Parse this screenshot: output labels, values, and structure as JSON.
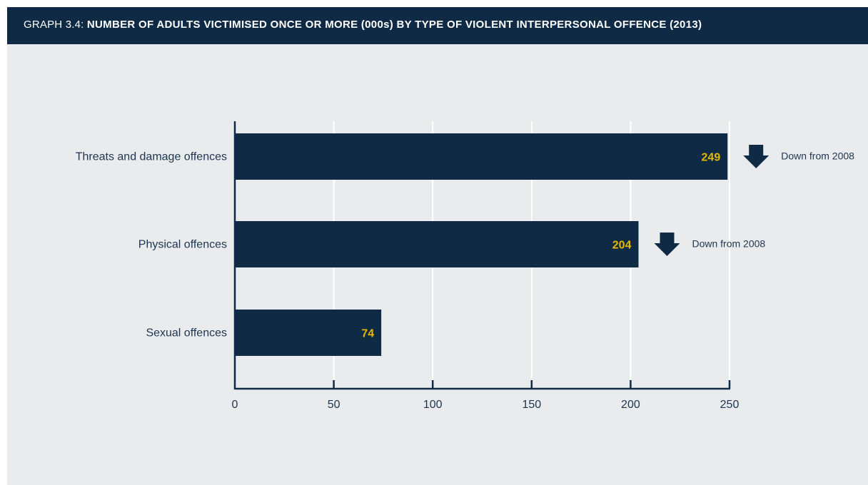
{
  "header": {
    "prefix": "GRAPH 3.4: ",
    "title": "NUMBER OF ADULTS VICTIMISED ONCE OR MORE (000s) BY TYPE OF VIOLENT INTERPERSONAL OFFENCE (2013)"
  },
  "colors": {
    "header_bg": "#0e2a45",
    "background": "#eaebed",
    "bar": "#0e2a45",
    "value_label": "#e6b800",
    "gridline": "#ffffff",
    "axis": "#0e2a45"
  },
  "chart_data": {
    "type": "bar",
    "orientation": "horizontal",
    "categories": [
      "Threats and damage offences",
      "Physical offences",
      "Sexual offences"
    ],
    "values": [
      249,
      204,
      74
    ],
    "value_labels": [
      "249",
      "204",
      "74"
    ],
    "xlim": [
      0,
      250
    ],
    "xticks": [
      0,
      50,
      100,
      150,
      200,
      250
    ],
    "grid": true,
    "annotations": [
      {
        "category": "Threats and damage offences",
        "arrow": "down-arrow-icon",
        "text": "Down from 2008"
      },
      {
        "category": "Physical offences",
        "arrow": "down-arrow-icon",
        "text": "Down from 2008"
      }
    ]
  }
}
